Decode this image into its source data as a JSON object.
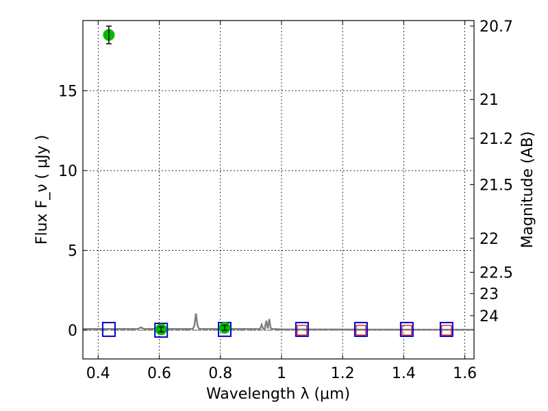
{
  "chart_data": {
    "type": "scatter",
    "xlabel": "Wavelength  λ (μm)",
    "ylabel": "Flux  F_ν  ( μJy )",
    "y2label": "Magnitude (AB)",
    "xlim": [
      0.35,
      1.63
    ],
    "ylim": [
      -1.8,
      19.4
    ],
    "x_ticks": [
      0.4,
      0.6,
      0.8,
      1.0,
      1.2,
      1.4,
      1.6
    ],
    "x_tick_labels": [
      "0.4",
      "0.6",
      "0.8",
      "1",
      "1.2",
      "1.4",
      "1.6"
    ],
    "y_ticks": [
      0,
      5,
      10,
      15
    ],
    "y_tick_labels": [
      "0",
      "5",
      "10",
      "15"
    ],
    "y2_ticks": [
      20.7,
      21,
      21.2,
      21.5,
      22,
      22.5,
      23,
      24
    ],
    "y2_tick_labels": [
      "20.7",
      "21",
      "21.2",
      "21.5",
      "22",
      "22.5",
      "23",
      "24"
    ],
    "grid": true,
    "colors": {
      "observed": "#00bb00",
      "model_blue": "#0000cc",
      "model_red": "#dd0000",
      "spectrum": "#808080"
    },
    "observed_points": [
      {
        "x": 0.435,
        "y": 18.5,
        "err": 0.55
      },
      {
        "x": 0.606,
        "y": 0.05,
        "err": 0.15
      },
      {
        "x": 0.814,
        "y": 0.15,
        "err": 0.15
      }
    ],
    "model_squares_blue": [
      {
        "x": 0.435,
        "y": 0.05
      },
      {
        "x": 0.606,
        "y": 0.0
      },
      {
        "x": 0.814,
        "y": 0.05
      },
      {
        "x": 1.067,
        "y": 0.05
      },
      {
        "x": 1.26,
        "y": 0.05
      },
      {
        "x": 1.41,
        "y": 0.05
      },
      {
        "x": 1.54,
        "y": 0.05
      }
    ],
    "model_squares_red": [
      {
        "x": 1.067,
        "y": 0.0
      },
      {
        "x": 1.26,
        "y": 0.0
      },
      {
        "x": 1.41,
        "y": 0.0
      },
      {
        "x": 1.54,
        "y": 0.0
      }
    ],
    "spectrum": {
      "x": [
        0.35,
        0.53,
        0.54,
        0.55,
        0.71,
        0.715,
        0.72,
        0.725,
        0.73,
        0.93,
        0.935,
        0.94,
        0.945,
        0.95,
        0.955,
        0.96,
        0.965,
        0.97,
        0.975,
        1.0,
        1.3,
        1.63
      ],
      "y": [
        0.08,
        0.08,
        0.18,
        0.08,
        0.08,
        0.3,
        1.05,
        0.3,
        0.08,
        0.08,
        0.35,
        0.08,
        0.08,
        0.6,
        0.1,
        0.7,
        0.1,
        0.08,
        0.08,
        0.06,
        0.04,
        0.03
      ]
    }
  }
}
